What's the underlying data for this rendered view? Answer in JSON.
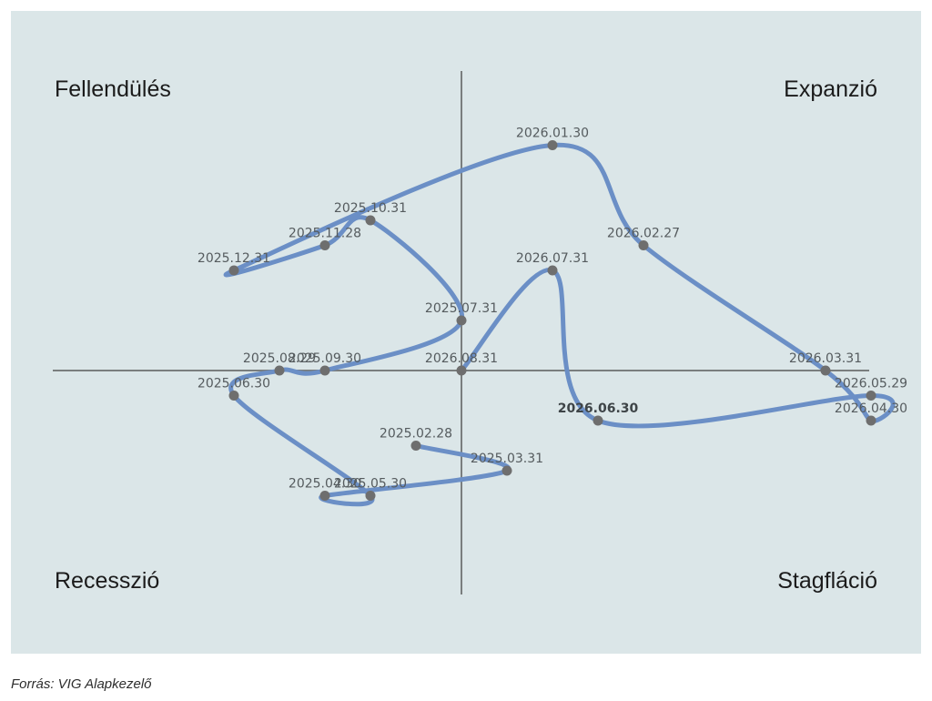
{
  "chart_data": {
    "type": "line",
    "quadrants": {
      "top_left": "Fellendülés",
      "top_right": "Expanzió",
      "bottom_left": "Recesszió",
      "bottom_right": "Stagfláció"
    },
    "xlim": [
      -9,
      9
    ],
    "ylim": [
      -9,
      6
    ],
    "axis_color": "#7a7e7e",
    "line_color": "#6b8fc6",
    "point_color": "#6e6e6e",
    "highlight": "2026.06.30",
    "points": [
      {
        "label": "2025.02.28",
        "x": -1,
        "y": -3
      },
      {
        "label": "2025.03.31",
        "x": 1,
        "y": -4
      },
      {
        "label": "2025.04.30",
        "x": -3,
        "y": -5
      },
      {
        "label": "2025.05.30",
        "x": -2,
        "y": -5
      },
      {
        "label": "2025.06.30",
        "x": -5,
        "y": -1
      },
      {
        "label": "2025.08.29",
        "x": -4,
        "y": 0
      },
      {
        "label": "2025.09.30",
        "x": -3,
        "y": 0
      },
      {
        "label": "2025.07.31",
        "x": 0,
        "y": 2
      },
      {
        "label": "2025.10.31",
        "x": -2,
        "y": 6
      },
      {
        "label": "2025.11.28",
        "x": -3,
        "y": 5
      },
      {
        "label": "2025.12.31",
        "x": -5,
        "y": 4
      },
      {
        "label": "2026.01.30",
        "x": 2,
        "y": 9
      },
      {
        "label": "2026.02.27",
        "x": 4,
        "y": 5
      },
      {
        "label": "2026.03.31",
        "x": 8,
        "y": 0
      },
      {
        "label": "2026.04.30",
        "x": 9,
        "y": -2
      },
      {
        "label": "2026.05.29",
        "x": 9,
        "y": -1
      },
      {
        "label": "2026.06.30",
        "x": 3,
        "y": -2
      },
      {
        "label": "2026.07.31",
        "x": 2,
        "y": 4
      },
      {
        "label": "2026.08.31",
        "x": 0,
        "y": 0
      }
    ]
  },
  "source": "Forrás: VIG Alapkezelő"
}
